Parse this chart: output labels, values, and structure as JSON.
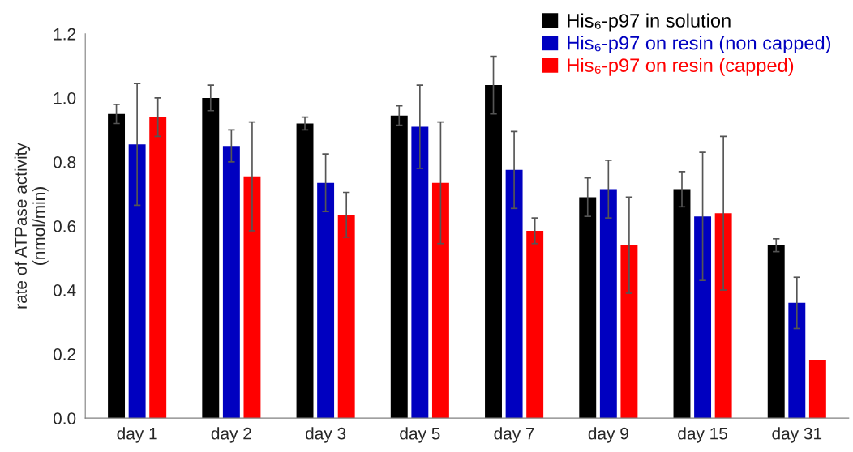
{
  "chart_data": {
    "type": "bar",
    "ylabel": "rate of ATPase activity\n(nmol/min)",
    "categories": [
      "day 1",
      "day 2",
      "day 3",
      "day 5",
      "day 7",
      "day 9",
      "day 15",
      "day 31"
    ],
    "series": [
      {
        "name": "His₆-p97 in solution",
        "color": "#000000",
        "values": [
          0.95,
          1.0,
          0.92,
          0.945,
          1.04,
          0.69,
          0.715,
          0.54
        ],
        "errors": [
          0.03,
          0.04,
          0.02,
          0.03,
          0.09,
          0.06,
          0.055,
          0.02
        ]
      },
      {
        "name": "His₆-p97 on resin (non capped)",
        "color": "#0000c0",
        "values": [
          0.855,
          0.85,
          0.735,
          0.91,
          0.775,
          0.715,
          0.63,
          0.36
        ],
        "errors": [
          0.19,
          0.05,
          0.09,
          0.13,
          0.12,
          0.09,
          0.2,
          0.08
        ]
      },
      {
        "name": "His₆-p97 on resin (capped)",
        "color": "#ff0000",
        "values": [
          0.94,
          0.755,
          0.635,
          0.735,
          0.585,
          0.54,
          0.64,
          0.18
        ],
        "errors": [
          0.06,
          0.17,
          0.07,
          0.19,
          0.04,
          0.15,
          0.24,
          null
        ]
      }
    ],
    "ylim": [
      0,
      1.2
    ],
    "yticks": [
      {
        "value": 0,
        "label": "0.0"
      },
      {
        "value": 0.2,
        "label": "0.2"
      },
      {
        "value": 0.4,
        "label": "0.4"
      },
      {
        "value": 0.6,
        "label": "0.6"
      },
      {
        "value": 0.8,
        "label": "0.8"
      },
      {
        "value": 1.0,
        "label": "1.0"
      },
      {
        "value": 1.2,
        "label": "1.2"
      }
    ],
    "grid": false,
    "legend": "top right"
  }
}
